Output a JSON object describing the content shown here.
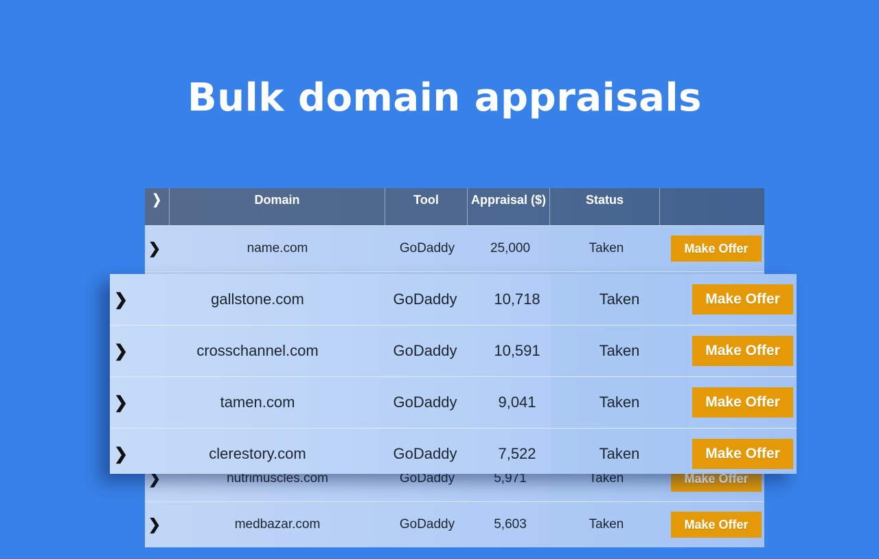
{
  "title": "Bulk domain appraisals",
  "table": {
    "headers": {
      "expand_icon": "chevron-right-icon",
      "domain": "Domain",
      "tool": "Tool",
      "appraisal": "Appraisal ($)",
      "status": "Status",
      "action": ""
    },
    "rows": [
      {
        "domain": "name.com",
        "tool": "GoDaddy",
        "appraisal": "25,000",
        "status": "Taken",
        "action": "Make Offer"
      },
      {
        "domain": "gallstone.com",
        "tool": "GoDaddy",
        "appraisal": "10,718",
        "status": "Taken",
        "action": "Make Offer"
      },
      {
        "domain": "crosschannel.com",
        "tool": "GoDaddy",
        "appraisal": "10,591",
        "status": "Taken",
        "action": "Make Offer"
      },
      {
        "domain": "tamen.com",
        "tool": "GoDaddy",
        "appraisal": "9,041",
        "status": "Taken",
        "action": "Make Offer"
      },
      {
        "domain": "clerestory.com",
        "tool": "GoDaddy",
        "appraisal": "7,522",
        "status": "Taken",
        "action": "Make Offer"
      },
      {
        "domain": "nutrimuscles.com",
        "tool": "GoDaddy",
        "appraisal": "5,971",
        "status": "Taken",
        "action": "Make Offer"
      },
      {
        "domain": "medbazar.com",
        "tool": "GoDaddy",
        "appraisal": "5,603",
        "status": "Taken",
        "action": "Make Offer"
      }
    ]
  },
  "chevron_glyph": "❯",
  "colors": {
    "background": "#3781e8",
    "header": "#4b6890",
    "row": "#b5cff6",
    "offer_button": "#e49a06"
  }
}
